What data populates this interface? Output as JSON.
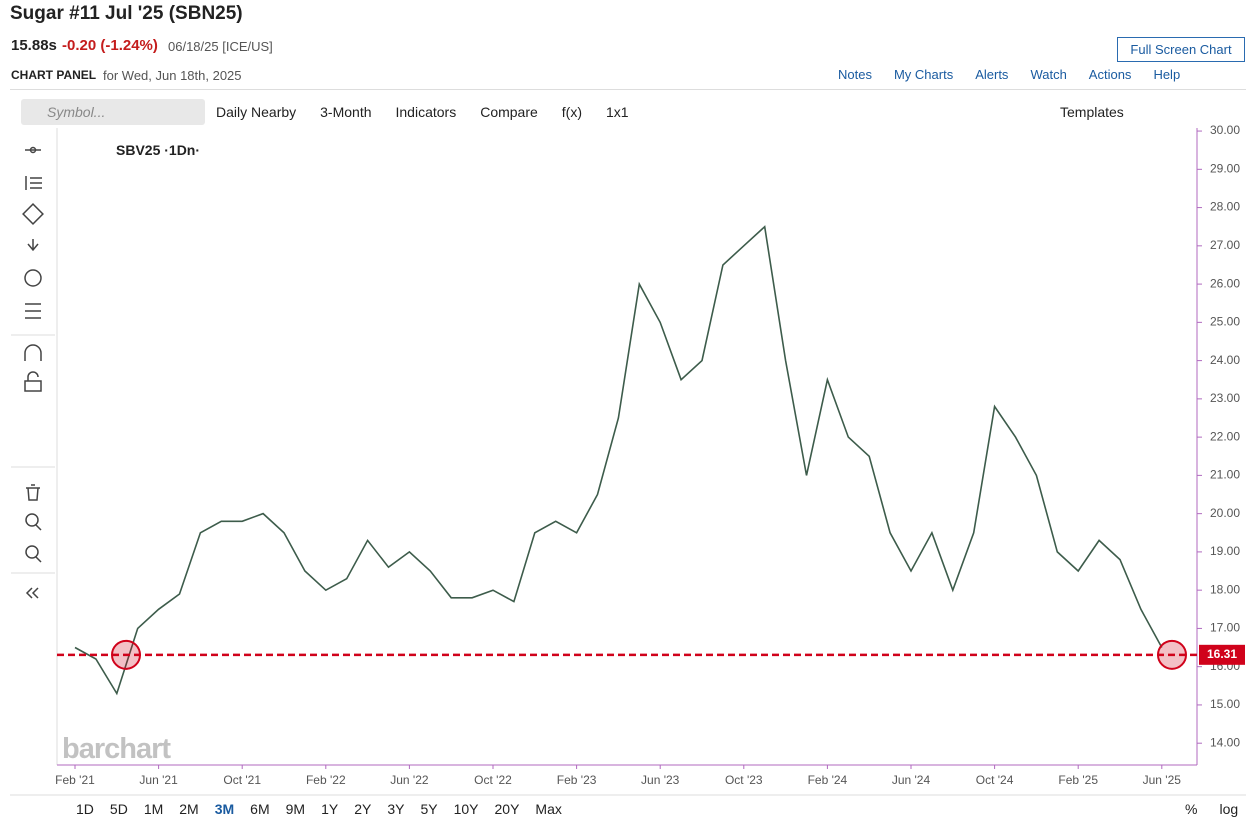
{
  "header": {
    "title": "Sugar #11 Jul '25 (SBN25)",
    "last": "15.88s",
    "change": "-0.20 (-1.24%)",
    "date_exchange": "06/18/25 [ICE/US]",
    "full_screen": "Full Screen Chart",
    "panel": "CHART PANEL",
    "panel_date": "for Wed, Jun 18th, 2025"
  },
  "nav": [
    "Notes",
    "My Charts",
    "Alerts",
    "Watch",
    "Actions",
    "Help"
  ],
  "toolbar": {
    "symbol_placeholder": "Symbol...",
    "items": [
      "Daily Nearby",
      "3-Month",
      "Indicators",
      "Compare",
      "f(x)",
      "1x1"
    ],
    "templates": "Templates"
  },
  "legend": "SBV25 ·1Dn·",
  "watermark": "barchart",
  "timeframes": [
    "1D",
    "5D",
    "1M",
    "2M",
    "3M",
    "6M",
    "9M",
    "1Y",
    "2Y",
    "3Y",
    "5Y",
    "10Y",
    "20Y",
    "Max"
  ],
  "scale_options": [
    "%",
    "log"
  ],
  "chart_data": {
    "type": "line",
    "color": "#3d5c4b",
    "categories": [
      "Feb '21",
      null,
      null,
      null,
      "Jun '21",
      null,
      null,
      null,
      "Oct '21",
      null,
      null,
      null,
      "Feb '22",
      null,
      null,
      null,
      "Jun '22",
      null,
      null,
      null,
      "Oct '22",
      null,
      null,
      null,
      "Feb '23",
      null,
      null,
      null,
      "Jun '23",
      null,
      null,
      null,
      "Oct '23",
      null,
      null,
      null,
      "Feb '24",
      null,
      null,
      null,
      "Jun '24",
      null,
      null,
      null,
      "Oct '24",
      null,
      null,
      null,
      "Feb '25",
      null,
      null,
      null,
      "Jun '25"
    ],
    "values": [
      16.5,
      16.2,
      15.3,
      17.0,
      17.5,
      17.9,
      19.5,
      19.8,
      19.8,
      20.0,
      19.5,
      18.5,
      18.0,
      18.3,
      19.3,
      18.6,
      19.0,
      18.5,
      17.8,
      17.8,
      18.0,
      17.7,
      19.5,
      19.8,
      19.5,
      20.5,
      22.5,
      26.0,
      25.0,
      23.5,
      24.0,
      26.5,
      27.0,
      27.5,
      24.0,
      21.0,
      23.5,
      22.0,
      21.5,
      19.5,
      18.5,
      19.5,
      18.0,
      19.5,
      22.8,
      22.0,
      21.0,
      19.0,
      18.5,
      19.3,
      18.8,
      17.5,
      16.5
    ],
    "current_price": 16.31,
    "current_price_color": "#d0021b",
    "ylim": [
      13.43,
      30.08
    ],
    "yticks": [
      {
        "value": 14,
        "label": "14.00"
      },
      {
        "value": 15,
        "label": "15.00"
      },
      {
        "value": 16,
        "label": "16.00"
      },
      {
        "value": 17,
        "label": "17.00"
      },
      {
        "value": 18,
        "label": "18.00"
      },
      {
        "value": 19,
        "label": "19.00"
      },
      {
        "value": 20,
        "label": "20.00"
      },
      {
        "value": 21,
        "label": "21.00"
      },
      {
        "value": 22,
        "label": "22.00"
      },
      {
        "value": 23,
        "label": "23.00"
      },
      {
        "value": 24,
        "label": "24.00"
      },
      {
        "value": 25,
        "label": "25.00"
      },
      {
        "value": 26,
        "label": "26.00"
      },
      {
        "value": 27,
        "label": "27.00"
      },
      {
        "value": 28,
        "label": "28.00"
      },
      {
        "value": 29,
        "label": "29.00"
      },
      {
        "value": 30,
        "label": "30.00"
      }
    ]
  }
}
